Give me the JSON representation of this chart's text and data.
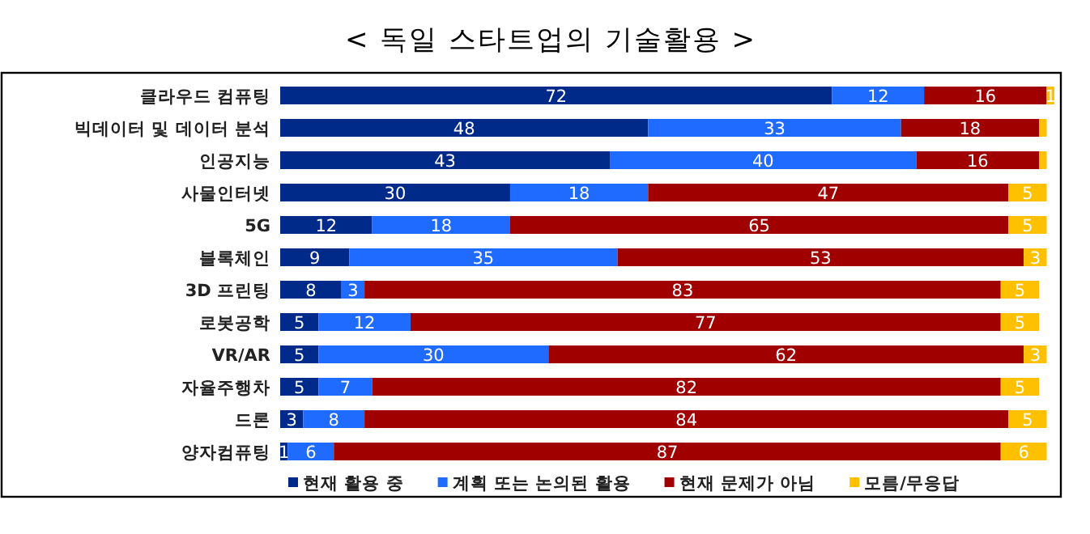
{
  "chart_data": {
    "type": "bar",
    "orientation": "horizontal",
    "stacked": true,
    "title": "< 독일 스타트업의 기술활용 >",
    "legend": "bottom",
    "categories": [
      "클라우드 컴퓨팅",
      "빅데이터 및 데이터 분석",
      "인공지능",
      "사물인터넷",
      "5G",
      "블록체인",
      "3D 프린팅",
      "로봇공학",
      "VR/AR",
      "자율주행차",
      "드론",
      "양자컴퓨팅"
    ],
    "series": [
      {
        "name": "현재 활용 중",
        "color": "#002a8a",
        "values": [
          72,
          48,
          43,
          30,
          12,
          9,
          8,
          5,
          5,
          5,
          3,
          1
        ],
        "value_labels": [
          "72",
          "48",
          "43",
          "30",
          "12",
          "9",
          "8",
          "5",
          "5",
          "5",
          "3",
          "1"
        ]
      },
      {
        "name": "계획 또는 논의된 활용",
        "color": "#1f6bff",
        "values": [
          12,
          33,
          40,
          18,
          18,
          35,
          3,
          12,
          30,
          7,
          8,
          6
        ],
        "value_labels": [
          "12",
          "33",
          "40",
          "18",
          "18",
          "35",
          "3",
          "12",
          "30",
          "7",
          "8",
          "6"
        ]
      },
      {
        "name": "현재 문제가 아님",
        "color": "#a00000",
        "values": [
          16,
          18,
          16,
          47,
          65,
          53,
          83,
          77,
          62,
          82,
          84,
          87
        ],
        "value_labels": [
          "16",
          "18",
          "16",
          "47",
          "65",
          "53",
          "83",
          "77",
          "62",
          "82",
          "84",
          "87"
        ]
      },
      {
        "name": "모름/무응답",
        "color": "#ffc000",
        "values": [
          1,
          1,
          1,
          5,
          5,
          3,
          5,
          5,
          3,
          5,
          5,
          6
        ],
        "value_labels": [
          "1",
          null,
          null,
          "5",
          "5",
          "3",
          "5",
          "5",
          "3",
          "5",
          "5",
          "6"
        ]
      }
    ]
  }
}
